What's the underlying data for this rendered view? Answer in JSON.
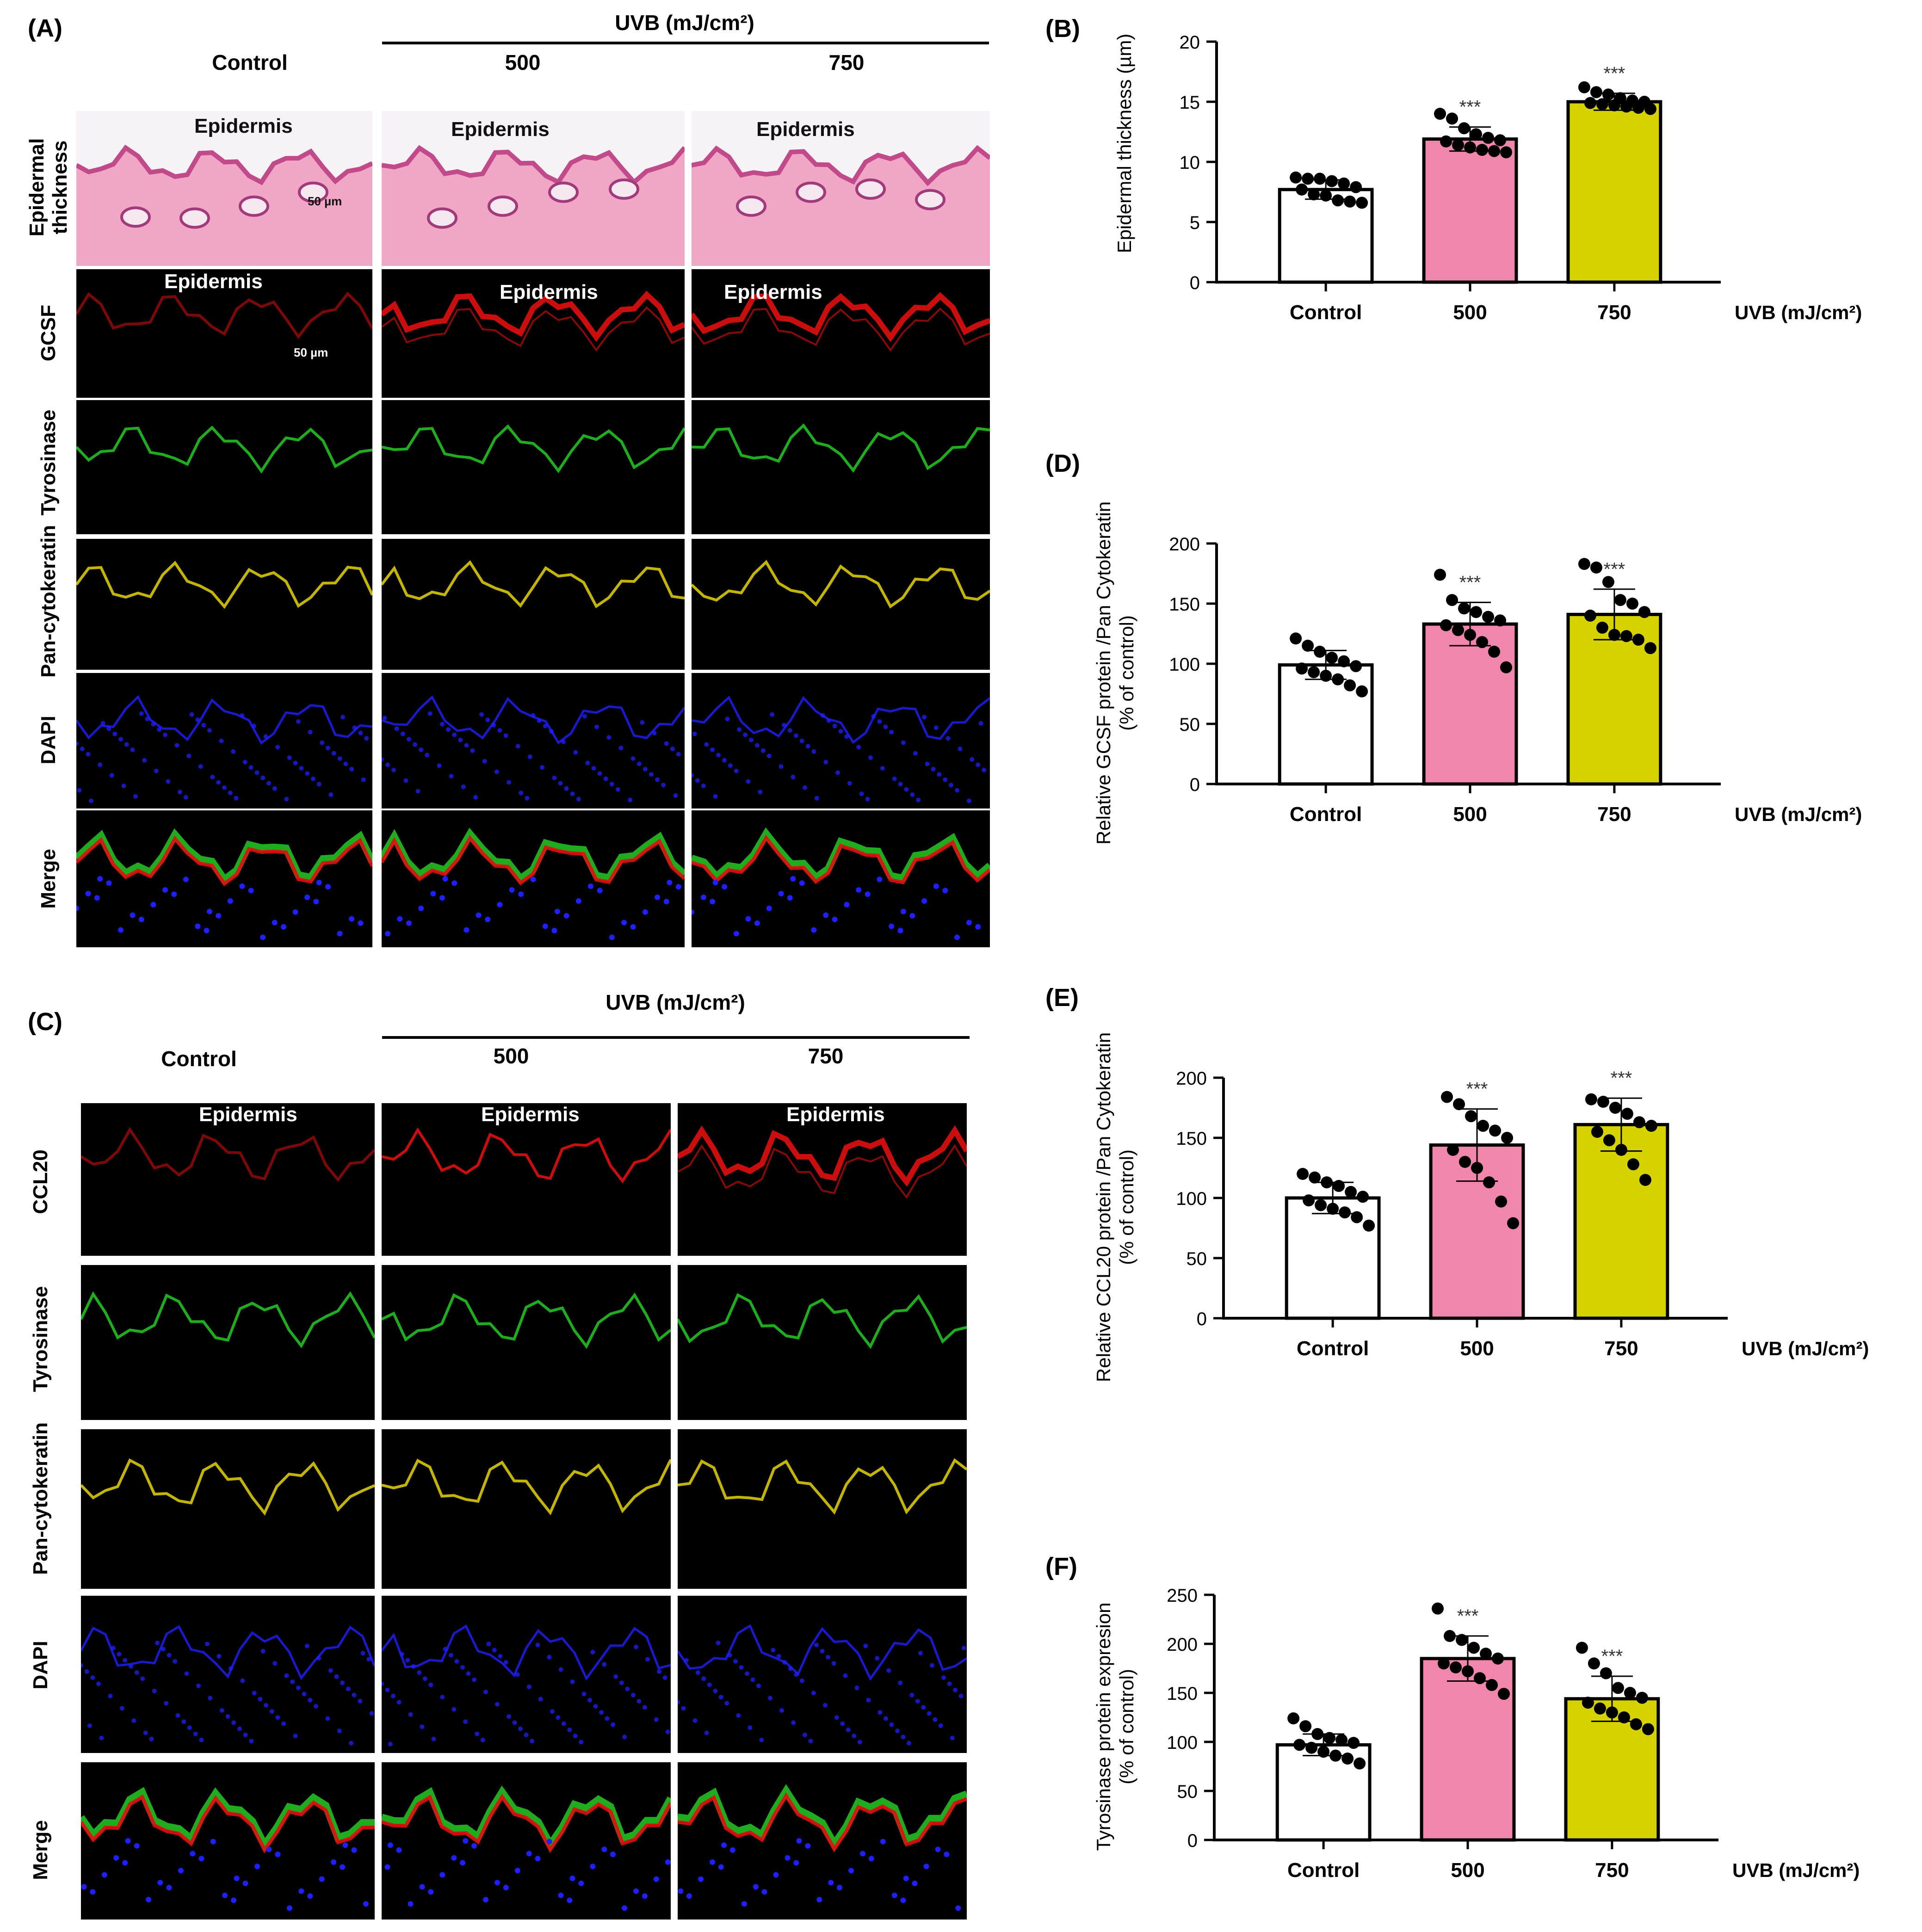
{
  "panels": {
    "A": {
      "letter": "(A)",
      "uvb_header": "UVB (mJ/cm²)",
      "columns": [
        "Control",
        "500",
        "750"
      ],
      "rows": [
        "Epidermal thickness",
        "GCSF",
        "Tyrosinase",
        "Pan-cytokeratin",
        "DAPI",
        "Merge"
      ],
      "epidermis_label": "Epidermis",
      "scale_bar": "50 µm"
    },
    "C": {
      "letter": "(C)",
      "uvb_header": "UVB (mJ/cm²)",
      "columns": [
        "Control",
        "500",
        "750"
      ],
      "rows": [
        "CCL20",
        "Tyrosinase",
        "Pan-cytokeratin",
        "DAPI",
        "Merge"
      ],
      "epidermis_label": "Epidermis"
    }
  },
  "colors": {
    "control": "#ffffff",
    "uvb500": "#f086ab",
    "uvb750": "#d6d200",
    "he_pink": "#f2a6c6",
    "red_channel": "#e01010",
    "green_channel": "#22c022",
    "yellow_channel": "#d8c800",
    "blue_channel": "#2020ff"
  },
  "chart_data": [
    {
      "letter": "(B)",
      "type": "bar",
      "categories": [
        "Control",
        "500",
        "750"
      ],
      "xlabel": "UVB (mJ/cm²)",
      "ylabel": [
        "Epidermal thickness (µm)"
      ],
      "ylim": [
        0,
        20
      ],
      "yticks": [
        "0",
        "5",
        "10",
        "15",
        "20"
      ],
      "values": [
        7.7,
        11.9,
        15.0
      ],
      "errors": [
        0.8,
        1.0,
        0.7
      ],
      "significance": [
        "",
        "***",
        "***"
      ],
      "points": [
        [
          8.7,
          8.6,
          8.6,
          8.4,
          8.2,
          7.9,
          7.7,
          7.3,
          7.2,
          6.8,
          6.7,
          6.6
        ],
        [
          14.0,
          13.6,
          12.8,
          12.3,
          12.0,
          11.8,
          11.7,
          11.4,
          11.2,
          11.0,
          10.9,
          10.8
        ],
        [
          16.2,
          15.8,
          15.6,
          15.3,
          15.1,
          15.0,
          14.9,
          14.8,
          14.7,
          14.6,
          14.5,
          14.4
        ]
      ]
    },
    {
      "letter": "(D)",
      "type": "bar",
      "categories": [
        "Control",
        "500",
        "750"
      ],
      "xlabel": "UVB (mJ/cm²)",
      "ylabel": [
        "Relative GCSF protein /Pan Cytokeratin",
        "(% of control)"
      ],
      "ylim": [
        0,
        200
      ],
      "yticks": [
        "0",
        "50",
        "100",
        "150",
        "200"
      ],
      "values": [
        99,
        133,
        141
      ],
      "errors": [
        12,
        18,
        21
      ],
      "significance": [
        "",
        "***",
        "***"
      ],
      "points": [
        [
          121,
          115,
          110,
          105,
          102,
          98,
          96,
          93,
          90,
          87,
          82,
          77
        ],
        [
          174,
          153,
          146,
          143,
          139,
          136,
          132,
          128,
          124,
          118,
          110,
          97
        ],
        [
          183,
          180,
          168,
          153,
          150,
          143,
          140,
          130,
          124,
          123,
          120,
          113
        ]
      ]
    },
    {
      "letter": "(E)",
      "type": "bar",
      "categories": [
        "Control",
        "500",
        "750"
      ],
      "xlabel": "UVB (mJ/cm²)",
      "ylabel": [
        "Relative CCL20 protein /Pan Cytokeratin",
        "(% of control)"
      ],
      "ylim": [
        0,
        200
      ],
      "yticks": [
        "0",
        "50",
        "100",
        "150",
        "200"
      ],
      "values": [
        100,
        144,
        161
      ],
      "errors": [
        13,
        30,
        22
      ],
      "significance": [
        "",
        "***",
        "***"
      ],
      "points": [
        [
          120,
          117,
          113,
          110,
          105,
          101,
          98,
          94,
          91,
          88,
          84,
          77
        ],
        [
          184,
          178,
          168,
          160,
          156,
          150,
          140,
          130,
          125,
          113,
          97,
          79
        ],
        [
          182,
          180,
          175,
          170,
          163,
          160,
          155,
          148,
          140,
          128,
          115
        ]
      ]
    },
    {
      "letter": "(F)",
      "type": "bar",
      "categories": [
        "Control",
        "500",
        "750"
      ],
      "xlabel": "UVB (mJ/cm²)",
      "ylabel": [
        "Tyrosinase protein expresion",
        "(% of control)"
      ],
      "ylim": [
        0,
        250
      ],
      "yticks": [
        "0",
        "50",
        "100",
        "150",
        "200",
        "250"
      ],
      "values": [
        97,
        185,
        144
      ],
      "errors": [
        11,
        23,
        23
      ],
      "significance": [
        "",
        "***",
        "***"
      ],
      "points": [
        [
          124,
          116,
          108,
          104,
          102,
          99,
          97,
          94,
          90,
          86,
          83,
          78
        ],
        [
          236,
          208,
          204,
          196,
          190,
          185,
          180,
          176,
          172,
          165,
          158,
          149
        ],
        [
          196,
          180,
          170,
          155,
          150,
          145,
          140,
          134,
          130,
          125,
          118,
          113
        ]
      ]
    }
  ]
}
